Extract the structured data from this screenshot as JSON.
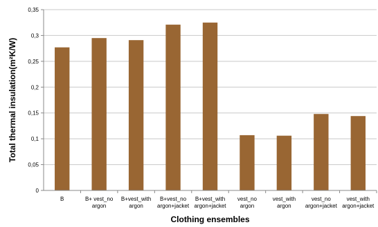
{
  "chart_data": {
    "type": "bar",
    "xlabel": "Clothing ensembles",
    "ylabel": "Total thermal insulation(m²K/W)",
    "ylim": [
      0,
      0.35
    ],
    "yticks": [
      "0",
      "0,05",
      "0,1",
      "0,15",
      "0,2",
      "0,25",
      "0,3",
      "0,35"
    ],
    "grid": true,
    "legend": "none",
    "bar_color": "#996633",
    "categories": [
      [
        "B"
      ],
      [
        "B+ vest_no",
        "argon"
      ],
      [
        "B+vest_with",
        "argon"
      ],
      [
        "B+vest_no",
        "argon+jacket"
      ],
      [
        "B+vest_with",
        "argon+jacket"
      ],
      [
        "vest_no",
        "argon"
      ],
      [
        "vest_with",
        "argon"
      ],
      [
        "vest_no",
        "argon+jacket"
      ],
      [
        "vest_with",
        "argon+jacket"
      ]
    ],
    "values": [
      0.277,
      0.295,
      0.291,
      0.321,
      0.325,
      0.107,
      0.106,
      0.148,
      0.144
    ]
  }
}
